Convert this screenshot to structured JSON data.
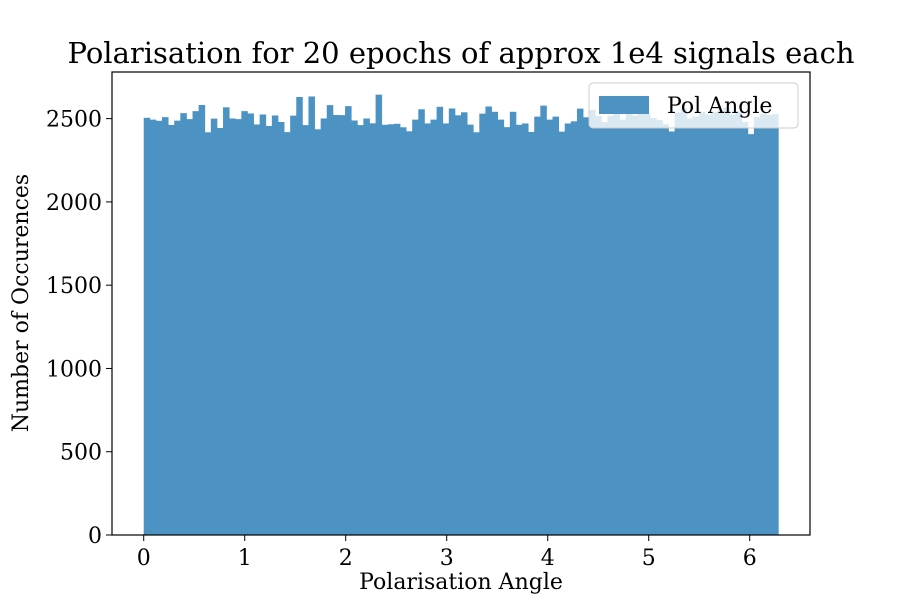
{
  "chart_data": {
    "type": "bar",
    "title": "Polarisation for 20 epochs of approx 1e4 signals each",
    "xlabel": "Polarisation Angle",
    "ylabel": "Number of Occurences",
    "xlim": [
      -0.314,
      6.597
    ],
    "ylim": [
      0,
      2780
    ],
    "xticks": [
      "0",
      "1",
      "2",
      "3",
      "4",
      "5",
      "6"
    ],
    "xtick_values": [
      0,
      1,
      2,
      3,
      4,
      5,
      6
    ],
    "yticks": [
      "0",
      "500",
      "1000",
      "1500",
      "2000",
      "2500"
    ],
    "ytick_values": [
      0,
      500,
      1000,
      1500,
      2000,
      2500
    ],
    "bin_range": [
      0,
      6.2832
    ],
    "series": [
      {
        "name": "Pol Angle",
        "color": "#4c92c3",
        "values": [
          2505,
          2494,
          2487,
          2509,
          2462,
          2488,
          2533,
          2497,
          2545,
          2582,
          2418,
          2500,
          2444,
          2568,
          2501,
          2497,
          2545,
          2531,
          2465,
          2525,
          2456,
          2519,
          2480,
          2419,
          2518,
          2630,
          2461,
          2633,
          2436,
          2501,
          2581,
          2522,
          2521,
          2575,
          2489,
          2461,
          2501,
          2472,
          2644,
          2463,
          2466,
          2469,
          2448,
          2424,
          2494,
          2556,
          2471,
          2494,
          2571,
          2471,
          2561,
          2520,
          2538,
          2464,
          2418,
          2530,
          2573,
          2541,
          2494,
          2449,
          2541,
          2463,
          2471,
          2420,
          2512,
          2578,
          2494,
          2512,
          2422,
          2471,
          2484,
          2560,
          2508,
          2553,
          2516,
          2480,
          2518,
          2552,
          2494,
          2551,
          2519,
          2529,
          2530,
          2504,
          2491,
          2466,
          2423,
          2535,
          2560,
          2500,
          2512,
          2541,
          2524,
          2540,
          2544,
          2566,
          2524,
          2543,
          2480,
          2407,
          2510,
          2528,
          2522,
          2527
        ]
      }
    ],
    "legend": {
      "position": "top-right",
      "entries": [
        "Pol Angle"
      ]
    },
    "grid": false
  }
}
